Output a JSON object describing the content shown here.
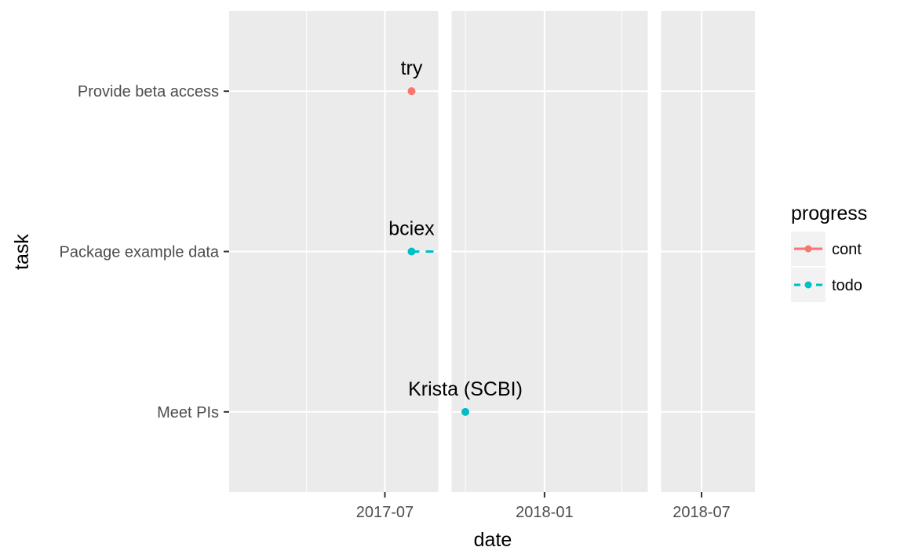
{
  "chart_data": {
    "type": "scatter",
    "xlabel": "date",
    "ylabel": "task",
    "x_ticks": [
      "2017-07",
      "2018-01",
      "2018-07"
    ],
    "categories": [
      "Provide beta access",
      "Package example data",
      "Meet PIs"
    ],
    "gaps": [
      [
        "2017-09-01",
        "2017-09-15"
      ],
      [
        "2018-05-01",
        "2018-05-15"
      ]
    ],
    "xlim": [
      "2017-01-01",
      "2018-09-01"
    ],
    "legend": {
      "title": "progress",
      "placement": "right",
      "entries": [
        {
          "name": "cont",
          "color": "#F8766D",
          "linetype": "solid"
        },
        {
          "name": "todo",
          "color": "#00BFC4",
          "linetype": "dashed"
        }
      ]
    },
    "series": [
      {
        "name": "cont",
        "color": "#F8766D",
        "points": [
          {
            "task": "Provide beta access",
            "start": "2017-08-01",
            "end": "2017-08-01",
            "label": "try"
          }
        ]
      },
      {
        "name": "todo",
        "color": "#00BFC4",
        "points": [
          {
            "task": "Package example data",
            "start": "2017-08-01",
            "end": "2017-09-01",
            "label": "bciex"
          },
          {
            "task": "Meet PIs",
            "start": "2017-10-01",
            "end": "2017-10-01",
            "label": "Krista (SCBI)"
          }
        ]
      }
    ]
  }
}
